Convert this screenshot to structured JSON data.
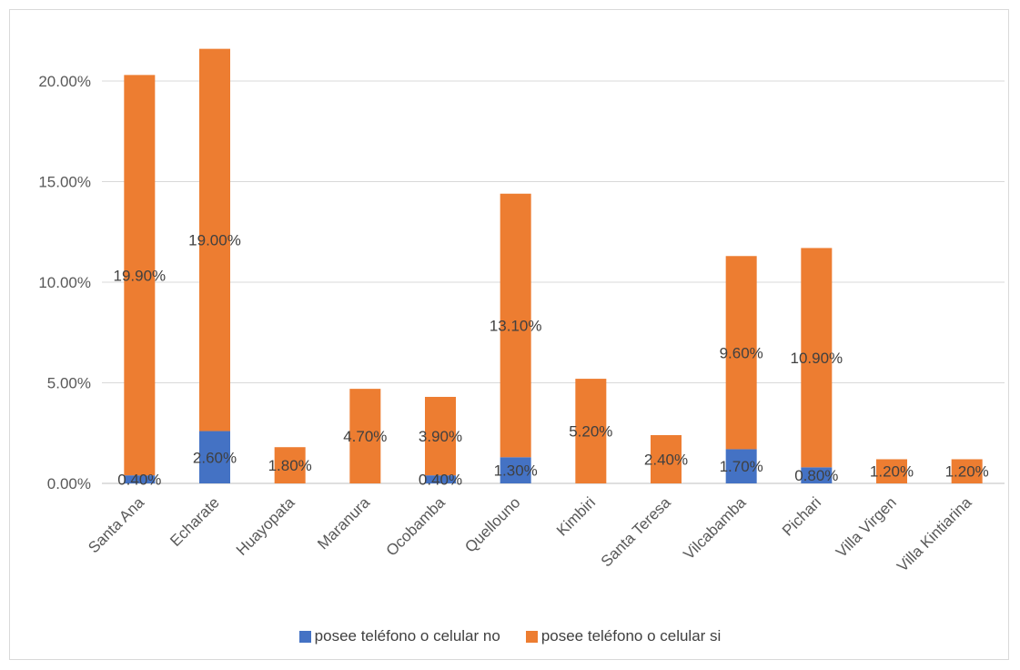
{
  "chart_data": {
    "type": "bar",
    "stacked": true,
    "categories": [
      "Santa Ana",
      "Echarate",
      "Huayopata",
      "Maranura",
      "Ocobamba",
      "Quellouno",
      "Kimbiri",
      "Santa Teresa",
      "Vilcabamba",
      "Pichari",
      "Villa Virgen",
      "Villa Kintiarina"
    ],
    "series": [
      {
        "name": "posee teléfono o celular no",
        "color": "#4472c4",
        "values": [
          0.4,
          2.6,
          0,
          0,
          0.4,
          1.3,
          0,
          0,
          1.7,
          0.8,
          0,
          0
        ],
        "labels": [
          "0.40%",
          "2.60%",
          "",
          "",
          "0.40%",
          "1.30%",
          "",
          "",
          "1.70%",
          "0.80%",
          "",
          ""
        ]
      },
      {
        "name": "posee teléfono o celular si",
        "color": "#ed7d31",
        "values": [
          19.9,
          19.0,
          1.8,
          4.7,
          3.9,
          13.1,
          5.2,
          2.4,
          9.6,
          10.9,
          1.2,
          1.2
        ],
        "labels": [
          "19.90%",
          "19.00%",
          "1.80%",
          "4.70%",
          "3.90%",
          "13.10%",
          "5.20%",
          "2.40%",
          "9.60%",
          "10.90%",
          "1.20%",
          "1.20%"
        ]
      }
    ],
    "yticks": [
      "0.00%",
      "5.00%",
      "10.00%",
      "15.00%",
      "20.00%"
    ],
    "ylim": [
      0,
      20
    ],
    "grid": true,
    "legend": "bottom"
  }
}
